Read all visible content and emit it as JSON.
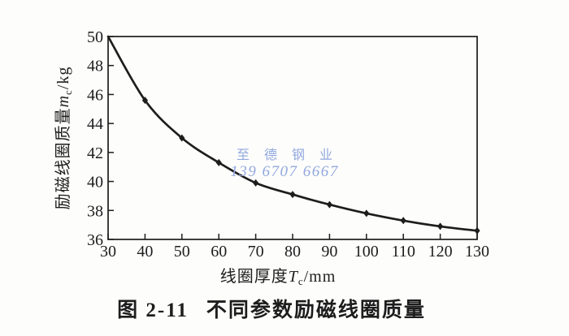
{
  "page": {
    "background": "#fdfdfc",
    "ink": "#1d1d1d"
  },
  "watermark": {
    "line1": "至 德 钢 业",
    "line2": "139 6707 6667",
    "color": "#92a8de"
  },
  "caption": {
    "number": "图 2-11",
    "text": "不同参数励磁线圈质量"
  },
  "chart_data": {
    "type": "line",
    "title": "图 2-11 不同参数励磁线圈质量",
    "x": [
      30,
      40,
      50,
      60,
      70,
      80,
      90,
      100,
      110,
      120,
      130
    ],
    "series": [
      {
        "name": "励磁线圈质量",
        "values": [
          50.0,
          45.6,
          43.0,
          41.3,
          39.9,
          39.1,
          38.4,
          37.8,
          37.3,
          36.9,
          36.6
        ]
      }
    ],
    "xlabel": "线圈厚度Tc/mm",
    "ylabel": "励磁线圈质量mc/kg",
    "xlabel_parts": {
      "prefix": "线圈厚度",
      "var": "T",
      "sub": "c",
      "unit": "/mm"
    },
    "ylabel_parts": {
      "prefix": "励磁线圈质量",
      "var": "m",
      "sub": "c",
      "unit": "/kg"
    },
    "xlim": [
      30,
      130
    ],
    "ylim": [
      36,
      50
    ],
    "xticks": [
      30,
      40,
      50,
      60,
      70,
      80,
      90,
      100,
      110,
      120,
      130
    ],
    "yticks": [
      36,
      38,
      40,
      42,
      44,
      46,
      48,
      50
    ],
    "grid": false,
    "legend_position": "none",
    "marker": "diamond",
    "line_color": "#1d1d1d",
    "frame": "box",
    "tick_direction": "in"
  }
}
